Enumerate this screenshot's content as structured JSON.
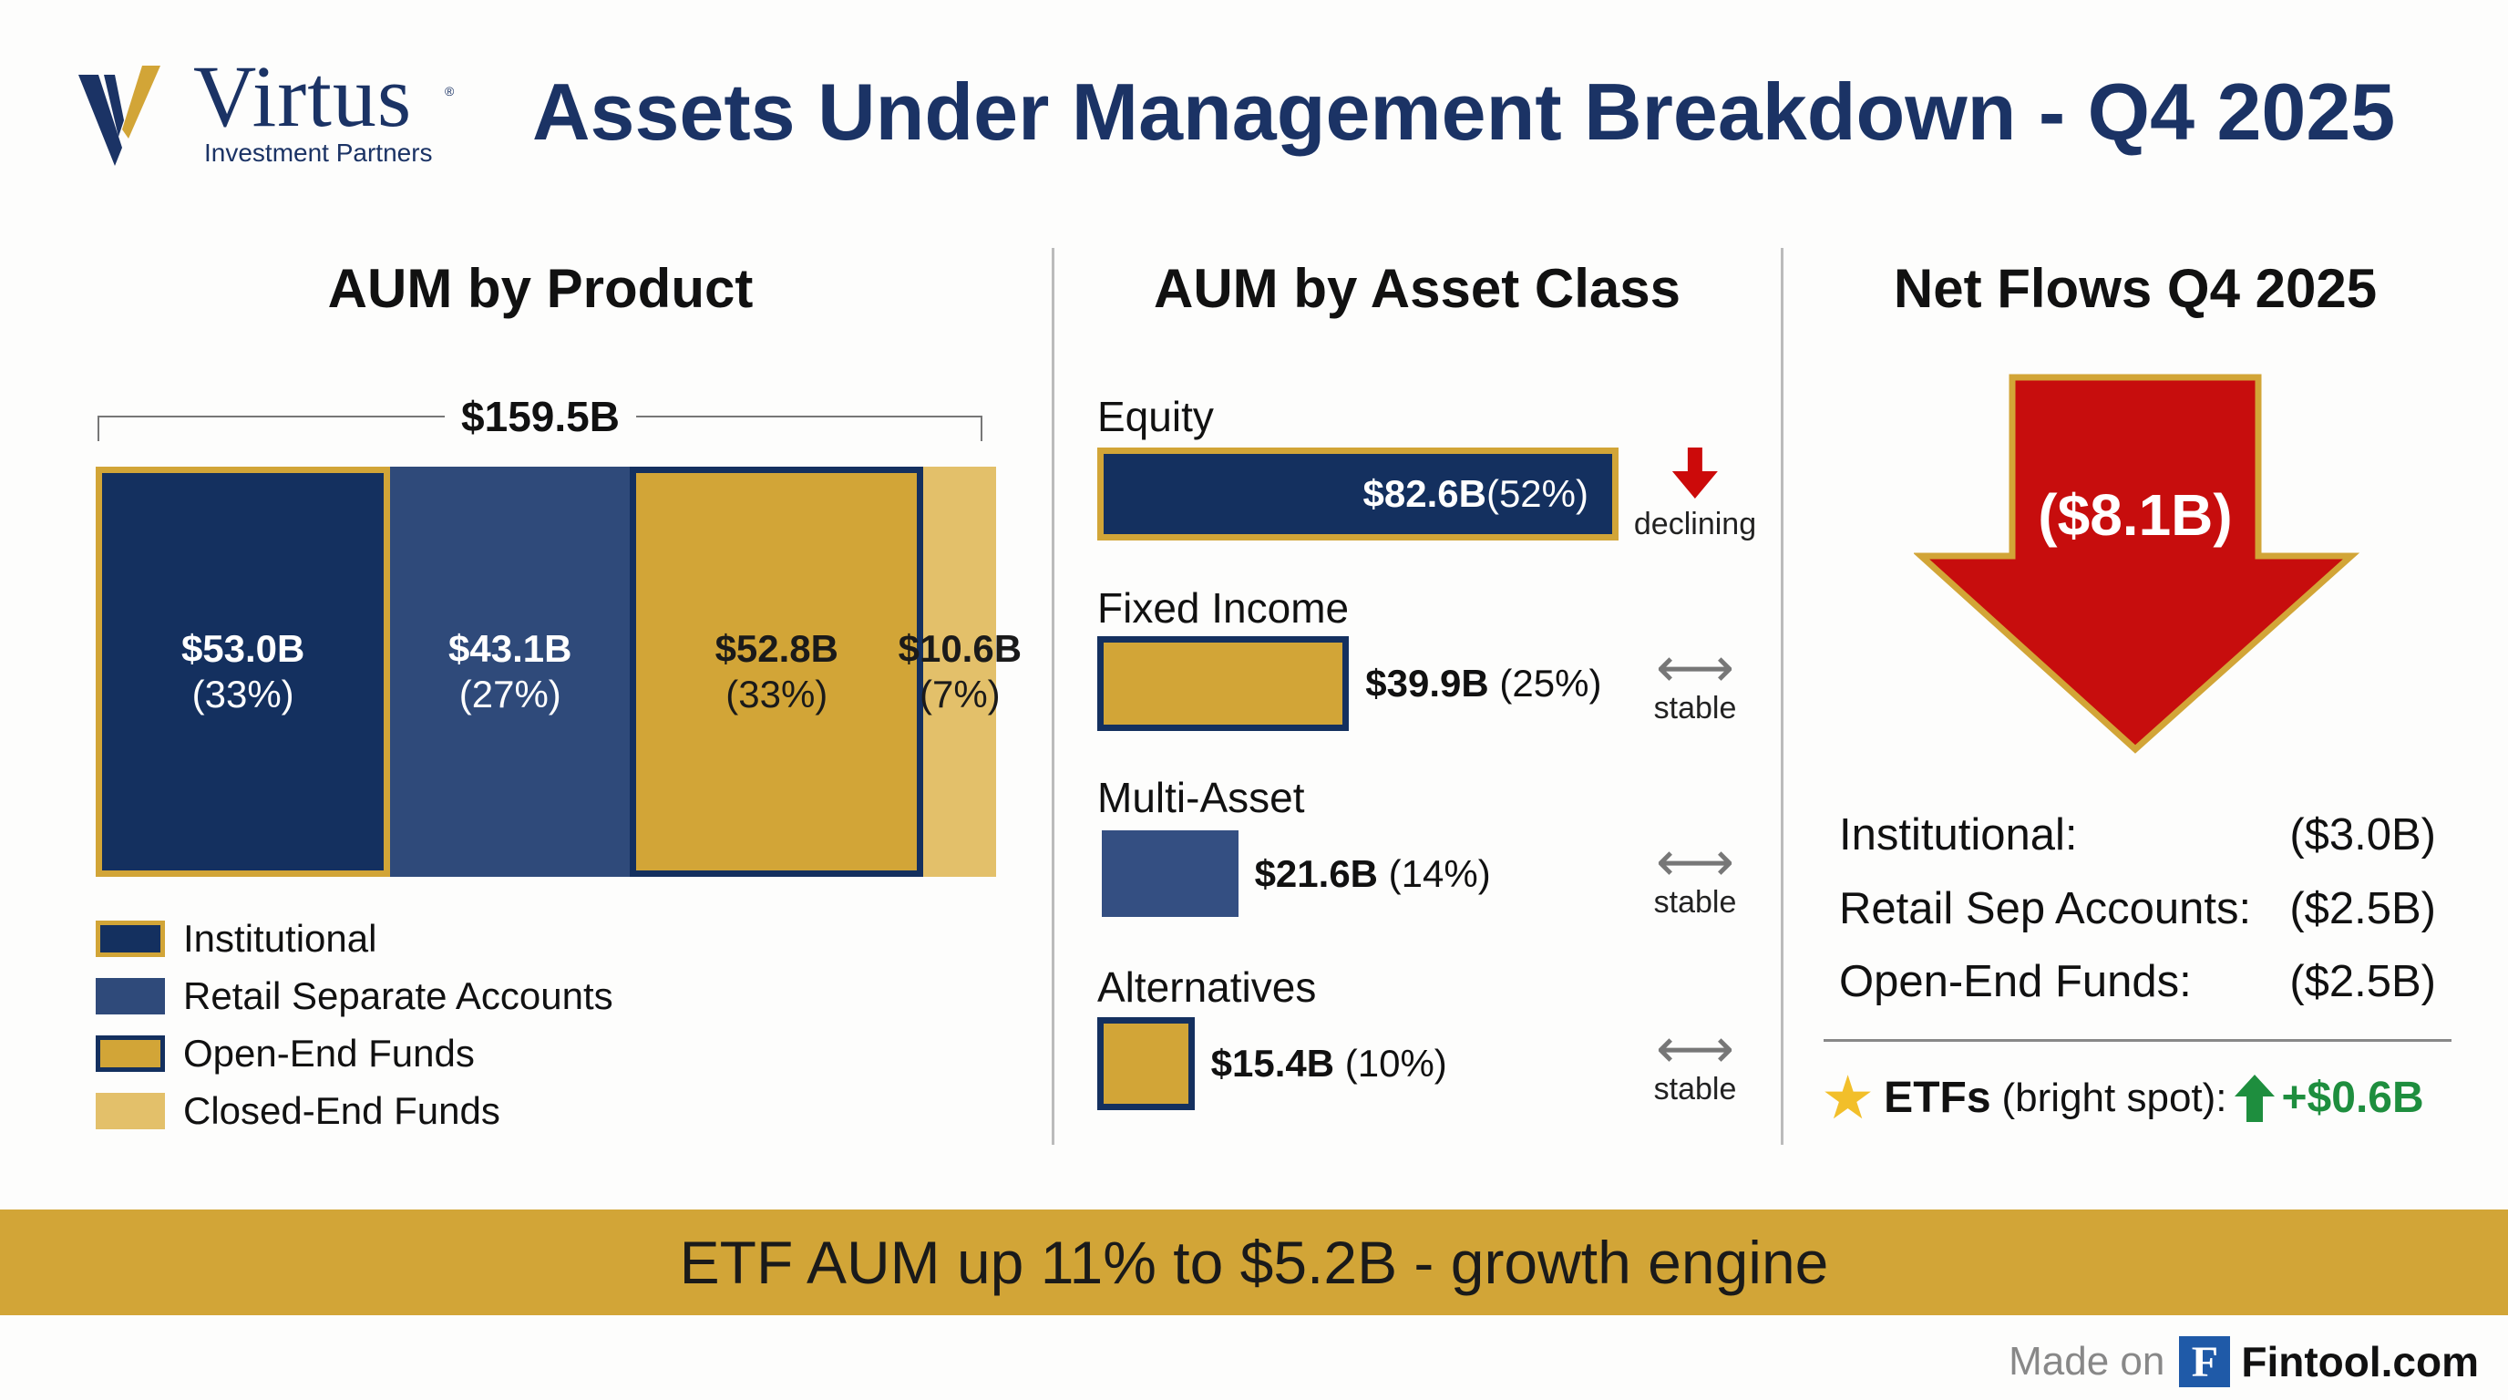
{
  "logo": {
    "name": "Virtus",
    "tagline": "Investment Partners",
    "reg": "®"
  },
  "title": "Assets Under Management Breakdown - Q4 2025",
  "colors": {
    "navy": "#14305f",
    "retail_blue": "#2f4a7a",
    "gold": "#d2a537",
    "light_gold": "#e3c06a",
    "red": "#cc0a0a",
    "green": "#1e8e3e"
  },
  "chart_data": [
    {
      "type": "bar",
      "title": "AUM by Product",
      "stacked": true,
      "total_label": "$159.5B",
      "categories": [
        "Institutional",
        "Retail Separate Accounts",
        "Open-End Funds",
        "Closed-End Funds"
      ],
      "values": [
        53.0,
        43.1,
        52.8,
        10.6
      ],
      "value_labels": [
        "$53.0B",
        "$43.1B",
        "$52.8B",
        "$10.6B"
      ],
      "pct_labels": [
        "(33%)",
        "(27%)",
        "(33%)",
        "(7%)"
      ],
      "legend": [
        "Institutional",
        "Retail Separate Accounts",
        "Open-End Funds",
        "Closed-End Funds"
      ]
    },
    {
      "type": "bar",
      "title": "AUM by Asset Class",
      "orientation": "horizontal",
      "categories": [
        "Equity",
        "Fixed Income",
        "Multi-Asset",
        "Alternatives"
      ],
      "values": [
        82.6,
        39.9,
        21.6,
        15.4
      ],
      "value_labels": [
        "$82.6B",
        "$39.9B",
        "$21.6B",
        "$15.4B"
      ],
      "pct_labels": [
        "(52%)",
        "(25%)",
        "(14%)",
        "(10%)"
      ],
      "trends": [
        "declining",
        "stable",
        "stable",
        "stable"
      ]
    }
  ],
  "net_flows": {
    "title": "Net Flows Q4 2025",
    "total": "($8.1B)",
    "rows": [
      {
        "label": "Institutional:",
        "value": "($3.0B)"
      },
      {
        "label": "Retail Sep Accounts:",
        "value": "($2.5B)"
      },
      {
        "label": "Open-End Funds:",
        "value": "($2.5B)"
      }
    ],
    "etf": {
      "label": "ETFs",
      "note": "(bright spot):",
      "value": "+$0.6B"
    }
  },
  "banner": "ETF AUM up 11% to $5.2B - growth engine",
  "footer": {
    "made_on": "Made on",
    "brand": "Fintool.com",
    "brand_letter": "F"
  }
}
